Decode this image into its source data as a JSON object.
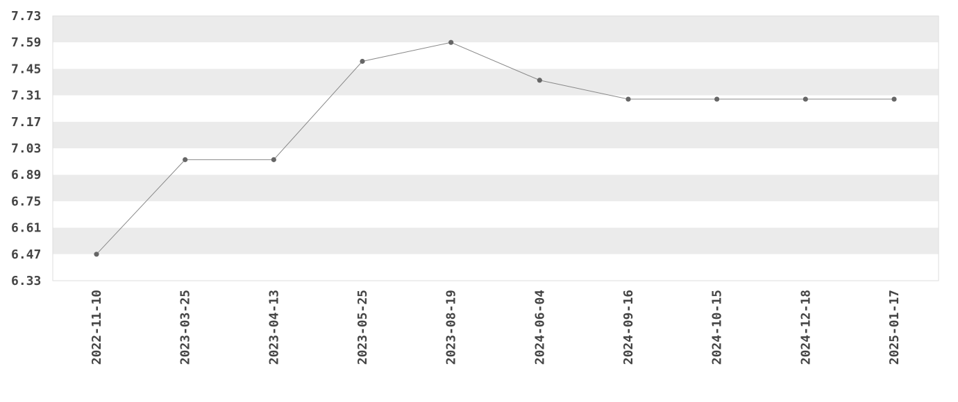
{
  "chart_data": {
    "type": "line",
    "title": "",
    "xlabel": "",
    "ylabel": "",
    "x": [
      "2022-11-10",
      "2023-03-25",
      "2023-04-13",
      "2023-05-25",
      "2023-08-19",
      "2024-06-04",
      "2024-09-16",
      "2024-10-15",
      "2024-12-18",
      "2025-01-17"
    ],
    "series": [
      {
        "values": [
          6.47,
          6.97,
          6.97,
          7.49,
          7.59,
          7.39,
          7.29,
          7.29,
          7.29,
          7.29
        ]
      }
    ],
    "ylim": [
      6.33,
      7.73
    ],
    "y_ticks": [
      "7.73",
      "7.59",
      "7.45",
      "7.31",
      "7.17",
      "7.03",
      "6.89",
      "6.75",
      "6.61",
      "6.47",
      "6.33"
    ],
    "grid": "alternating horizontal bands",
    "legend": "none",
    "colors": {
      "line": "#888888",
      "marker": "#666666",
      "band": "#ebebeb",
      "tick_text": "#444444",
      "border": "#dddddd"
    }
  }
}
